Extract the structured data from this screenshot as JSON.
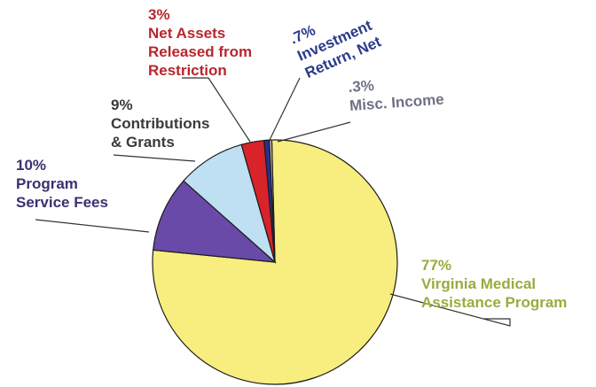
{
  "chart_data": {
    "type": "pie",
    "slices": [
      {
        "pct_label": "77%",
        "name_lines": [
          "Virginia Medical",
          "Assistance Program"
        ],
        "value": 77,
        "color": "#f7ee7f",
        "label_color": "#9aab3e"
      },
      {
        "pct_label": "10%",
        "name_lines": [
          "Program",
          "Service Fees"
        ],
        "value": 10,
        "color": "#6a4aa8",
        "label_color": "#3b3170"
      },
      {
        "pct_label": "9%",
        "name_lines": [
          "Contributions",
          "& Grants"
        ],
        "value": 9,
        "color": "#bfe0f3",
        "label_color": "#3a3a3a"
      },
      {
        "pct_label": "3%",
        "name_lines": [
          "Net Assets",
          "Released from",
          "Restriction"
        ],
        "value": 3,
        "color": "#d8232a",
        "label_color": "#b8262d"
      },
      {
        "pct_label": ".7%",
        "name_lines": [
          "Investment",
          "Return, Net"
        ],
        "value": 0.7,
        "color": "#27318a",
        "label_color": "#2a3a8a"
      },
      {
        "pct_label": ".3%",
        "name_lines": [
          "Misc. Income"
        ],
        "value": 0.3,
        "color": "#d9d3c8",
        "label_color": "#6f7284"
      }
    ]
  }
}
